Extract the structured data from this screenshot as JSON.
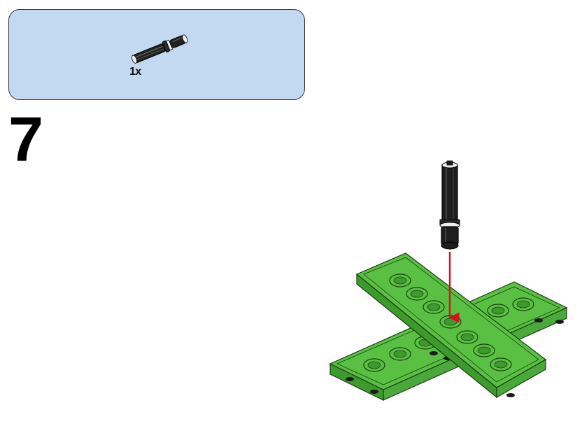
{
  "parts_list": {
    "items": [
      {
        "icon": "axle-pin-icon",
        "quantity": "1x"
      }
    ]
  },
  "step": {
    "number": "7"
  },
  "colors": {
    "parts_box_background": "#c3d9f1",
    "plate_green": "#5ac043",
    "plate_green_dark": "#3f9a2e",
    "pin_black": "#1e1e1e",
    "arrow_red": "#d3141e"
  }
}
